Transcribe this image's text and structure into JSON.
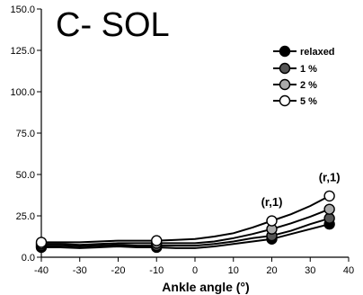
{
  "chart_data": {
    "type": "line",
    "title": "C- SOL",
    "xlabel": "Ankle angle (°)",
    "ylabel": "",
    "xlim": [
      -40,
      40
    ],
    "ylim": [
      0,
      150
    ],
    "xticks": [
      "-40",
      "-30",
      "-20",
      "-10",
      "0",
      "10",
      "20",
      "30",
      "40"
    ],
    "yticks": [
      "0.0",
      "25.0",
      "50.0",
      "75.0",
      "100.0",
      "125.0",
      "150.0"
    ],
    "legend_position": "top-right",
    "series": [
      {
        "name": "relaxed",
        "color": "#000000",
        "curve_x": [
          -40,
          -35,
          -30,
          -25,
          -20,
          -15,
          -10,
          -5,
          0,
          5,
          10,
          15,
          20,
          25,
          30,
          35
        ],
        "curve_y": [
          6,
          6,
          5.5,
          6,
          6.5,
          6,
          6,
          5.5,
          5.5,
          6.5,
          8,
          9.5,
          11,
          14,
          17,
          20
        ],
        "marker_x": [
          -40,
          -10,
          20,
          35
        ],
        "marker_y": [
          6,
          6,
          11,
          20
        ]
      },
      {
        "name": "1 %",
        "color": "#555555",
        "curve_x": [
          -40,
          -35,
          -30,
          -25,
          -20,
          -15,
          -10,
          -5,
          0,
          5,
          10,
          15,
          20,
          25,
          30,
          35
        ],
        "curve_y": [
          7,
          7,
          6.5,
          7,
          7.5,
          7,
          7,
          7,
          7,
          8,
          9.5,
          11.5,
          13,
          16,
          20,
          23.5
        ],
        "marker_x": [
          -40,
          -10,
          20,
          35
        ],
        "marker_y": [
          7,
          7,
          13,
          23.5
        ]
      },
      {
        "name": "2 %",
        "color": "#aaaaaa",
        "curve_x": [
          -40,
          -35,
          -30,
          -25,
          -20,
          -15,
          -10,
          -5,
          0,
          5,
          10,
          15,
          20,
          25,
          30,
          35
        ],
        "curve_y": [
          8,
          8,
          7.5,
          8,
          8.5,
          8.5,
          8.5,
          8.5,
          8.5,
          9.5,
          11.5,
          14,
          17,
          20.5,
          24.5,
          29
        ],
        "marker_x": [
          -40,
          -10,
          20,
          35
        ],
        "marker_y": [
          8,
          8.5,
          17,
          29
        ]
      },
      {
        "name": "5 %",
        "color": "#ffffff",
        "curve_x": [
          -40,
          -35,
          -30,
          -25,
          -20,
          -15,
          -10,
          -5,
          0,
          5,
          10,
          15,
          20,
          25,
          30,
          35
        ],
        "curve_y": [
          9,
          9,
          9,
          9.5,
          10,
          10,
          10,
          10.5,
          11,
          12.5,
          14.5,
          18,
          22,
          26,
          31,
          37
        ],
        "marker_x": [
          -40,
          -10,
          20,
          35
        ],
        "marker_y": [
          9,
          10,
          22,
          37
        ]
      }
    ],
    "annotations": [
      {
        "text": "(r,1)",
        "x": 20,
        "y": 31
      },
      {
        "text": "(r,1)",
        "x": 35,
        "y": 46
      }
    ]
  }
}
